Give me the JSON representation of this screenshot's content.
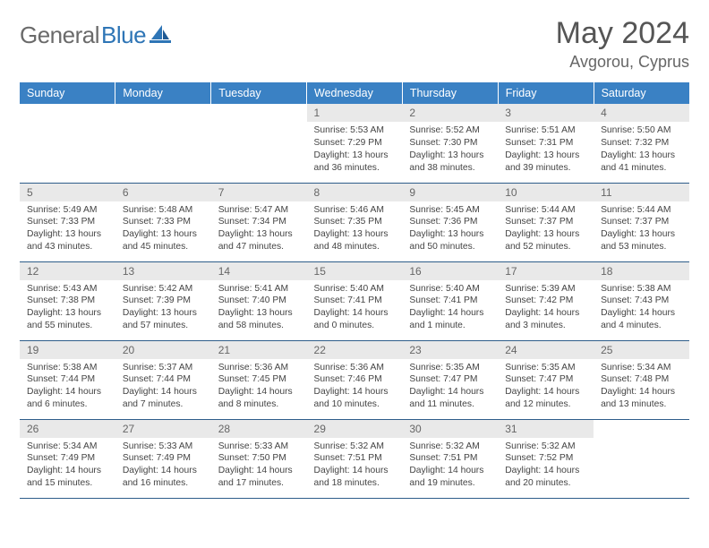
{
  "brand": {
    "text1": "General",
    "text2": "Blue"
  },
  "title": "May 2024",
  "location": "Avgorou, Cyprus",
  "colors": {
    "header_bg": "#3a81c4",
    "daynum_bg": "#e9e9e9",
    "row_border": "#2e5d8a",
    "brand_gray": "#6a6a6a",
    "brand_blue": "#2e75b6"
  },
  "typography": {
    "title_fontsize": 34,
    "location_fontsize": 18,
    "header_fontsize": 12.5,
    "daynum_fontsize": 12,
    "cell_fontsize": 10.3
  },
  "weekdays": [
    "Sunday",
    "Monday",
    "Tuesday",
    "Wednesday",
    "Thursday",
    "Friday",
    "Saturday"
  ],
  "weeks": [
    [
      {
        "n": "",
        "l": [
          "",
          "",
          "",
          ""
        ]
      },
      {
        "n": "",
        "l": [
          "",
          "",
          "",
          ""
        ]
      },
      {
        "n": "",
        "l": [
          "",
          "",
          "",
          ""
        ]
      },
      {
        "n": "1",
        "l": [
          "Sunrise: 5:53 AM",
          "Sunset: 7:29 PM",
          "Daylight: 13 hours",
          "and 36 minutes."
        ]
      },
      {
        "n": "2",
        "l": [
          "Sunrise: 5:52 AM",
          "Sunset: 7:30 PM",
          "Daylight: 13 hours",
          "and 38 minutes."
        ]
      },
      {
        "n": "3",
        "l": [
          "Sunrise: 5:51 AM",
          "Sunset: 7:31 PM",
          "Daylight: 13 hours",
          "and 39 minutes."
        ]
      },
      {
        "n": "4",
        "l": [
          "Sunrise: 5:50 AM",
          "Sunset: 7:32 PM",
          "Daylight: 13 hours",
          "and 41 minutes."
        ]
      }
    ],
    [
      {
        "n": "5",
        "l": [
          "Sunrise: 5:49 AM",
          "Sunset: 7:33 PM",
          "Daylight: 13 hours",
          "and 43 minutes."
        ]
      },
      {
        "n": "6",
        "l": [
          "Sunrise: 5:48 AM",
          "Sunset: 7:33 PM",
          "Daylight: 13 hours",
          "and 45 minutes."
        ]
      },
      {
        "n": "7",
        "l": [
          "Sunrise: 5:47 AM",
          "Sunset: 7:34 PM",
          "Daylight: 13 hours",
          "and 47 minutes."
        ]
      },
      {
        "n": "8",
        "l": [
          "Sunrise: 5:46 AM",
          "Sunset: 7:35 PM",
          "Daylight: 13 hours",
          "and 48 minutes."
        ]
      },
      {
        "n": "9",
        "l": [
          "Sunrise: 5:45 AM",
          "Sunset: 7:36 PM",
          "Daylight: 13 hours",
          "and 50 minutes."
        ]
      },
      {
        "n": "10",
        "l": [
          "Sunrise: 5:44 AM",
          "Sunset: 7:37 PM",
          "Daylight: 13 hours",
          "and 52 minutes."
        ]
      },
      {
        "n": "11",
        "l": [
          "Sunrise: 5:44 AM",
          "Sunset: 7:37 PM",
          "Daylight: 13 hours",
          "and 53 minutes."
        ]
      }
    ],
    [
      {
        "n": "12",
        "l": [
          "Sunrise: 5:43 AM",
          "Sunset: 7:38 PM",
          "Daylight: 13 hours",
          "and 55 minutes."
        ]
      },
      {
        "n": "13",
        "l": [
          "Sunrise: 5:42 AM",
          "Sunset: 7:39 PM",
          "Daylight: 13 hours",
          "and 57 minutes."
        ]
      },
      {
        "n": "14",
        "l": [
          "Sunrise: 5:41 AM",
          "Sunset: 7:40 PM",
          "Daylight: 13 hours",
          "and 58 minutes."
        ]
      },
      {
        "n": "15",
        "l": [
          "Sunrise: 5:40 AM",
          "Sunset: 7:41 PM",
          "Daylight: 14 hours",
          "and 0 minutes."
        ]
      },
      {
        "n": "16",
        "l": [
          "Sunrise: 5:40 AM",
          "Sunset: 7:41 PM",
          "Daylight: 14 hours",
          "and 1 minute."
        ]
      },
      {
        "n": "17",
        "l": [
          "Sunrise: 5:39 AM",
          "Sunset: 7:42 PM",
          "Daylight: 14 hours",
          "and 3 minutes."
        ]
      },
      {
        "n": "18",
        "l": [
          "Sunrise: 5:38 AM",
          "Sunset: 7:43 PM",
          "Daylight: 14 hours",
          "and 4 minutes."
        ]
      }
    ],
    [
      {
        "n": "19",
        "l": [
          "Sunrise: 5:38 AM",
          "Sunset: 7:44 PM",
          "Daylight: 14 hours",
          "and 6 minutes."
        ]
      },
      {
        "n": "20",
        "l": [
          "Sunrise: 5:37 AM",
          "Sunset: 7:44 PM",
          "Daylight: 14 hours",
          "and 7 minutes."
        ]
      },
      {
        "n": "21",
        "l": [
          "Sunrise: 5:36 AM",
          "Sunset: 7:45 PM",
          "Daylight: 14 hours",
          "and 8 minutes."
        ]
      },
      {
        "n": "22",
        "l": [
          "Sunrise: 5:36 AM",
          "Sunset: 7:46 PM",
          "Daylight: 14 hours",
          "and 10 minutes."
        ]
      },
      {
        "n": "23",
        "l": [
          "Sunrise: 5:35 AM",
          "Sunset: 7:47 PM",
          "Daylight: 14 hours",
          "and 11 minutes."
        ]
      },
      {
        "n": "24",
        "l": [
          "Sunrise: 5:35 AM",
          "Sunset: 7:47 PM",
          "Daylight: 14 hours",
          "and 12 minutes."
        ]
      },
      {
        "n": "25",
        "l": [
          "Sunrise: 5:34 AM",
          "Sunset: 7:48 PM",
          "Daylight: 14 hours",
          "and 13 minutes."
        ]
      }
    ],
    [
      {
        "n": "26",
        "l": [
          "Sunrise: 5:34 AM",
          "Sunset: 7:49 PM",
          "Daylight: 14 hours",
          "and 15 minutes."
        ]
      },
      {
        "n": "27",
        "l": [
          "Sunrise: 5:33 AM",
          "Sunset: 7:49 PM",
          "Daylight: 14 hours",
          "and 16 minutes."
        ]
      },
      {
        "n": "28",
        "l": [
          "Sunrise: 5:33 AM",
          "Sunset: 7:50 PM",
          "Daylight: 14 hours",
          "and 17 minutes."
        ]
      },
      {
        "n": "29",
        "l": [
          "Sunrise: 5:32 AM",
          "Sunset: 7:51 PM",
          "Daylight: 14 hours",
          "and 18 minutes."
        ]
      },
      {
        "n": "30",
        "l": [
          "Sunrise: 5:32 AM",
          "Sunset: 7:51 PM",
          "Daylight: 14 hours",
          "and 19 minutes."
        ]
      },
      {
        "n": "31",
        "l": [
          "Sunrise: 5:32 AM",
          "Sunset: 7:52 PM",
          "Daylight: 14 hours",
          "and 20 minutes."
        ]
      },
      {
        "n": "",
        "l": [
          "",
          "",
          "",
          ""
        ]
      }
    ]
  ]
}
